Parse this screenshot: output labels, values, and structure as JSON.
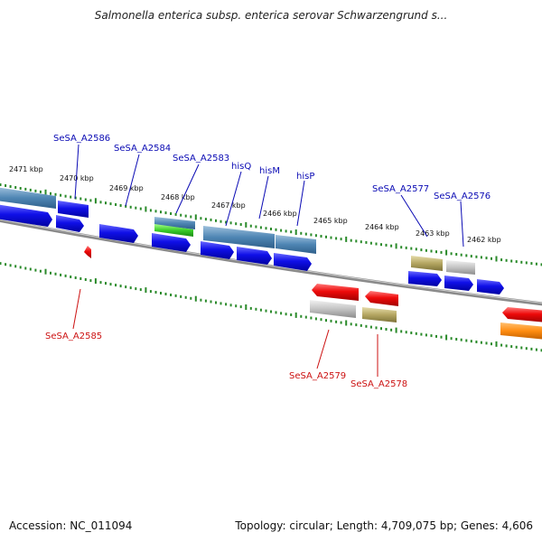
{
  "title": "Salmonella enterica subsp. enterica serovar Schwarzengrund s...",
  "footer": {
    "accession": "Accession: NC_011094",
    "summary": "Topology: circular; Length: 4,709,075 bp; Genes: 4,606"
  },
  "colors": {
    "forward_label": "#0a0ab4",
    "reverse_label": "#cc1111",
    "tick": "#2a8a2a",
    "backbone": "#777777"
  },
  "kbp_labels": [
    "2471 kbp",
    "2470 kbp",
    "2469 kbp",
    "2468 kbp",
    "2467 kbp",
    "2466 kbp",
    "2465 kbp",
    "2464 kbp",
    "2463 kbp",
    "2462 kbp"
  ],
  "gene_labels_forward": [
    "SeSA_A2586",
    "SeSA_A2584",
    "SeSA_A2583",
    "hisQ",
    "hisM",
    "hisP",
    "SeSA_A2577",
    "SeSA_A2576"
  ],
  "gene_labels_reverse": [
    "SeSA_A2585",
    "SeSA_A2579",
    "SeSA_A2578"
  ]
}
